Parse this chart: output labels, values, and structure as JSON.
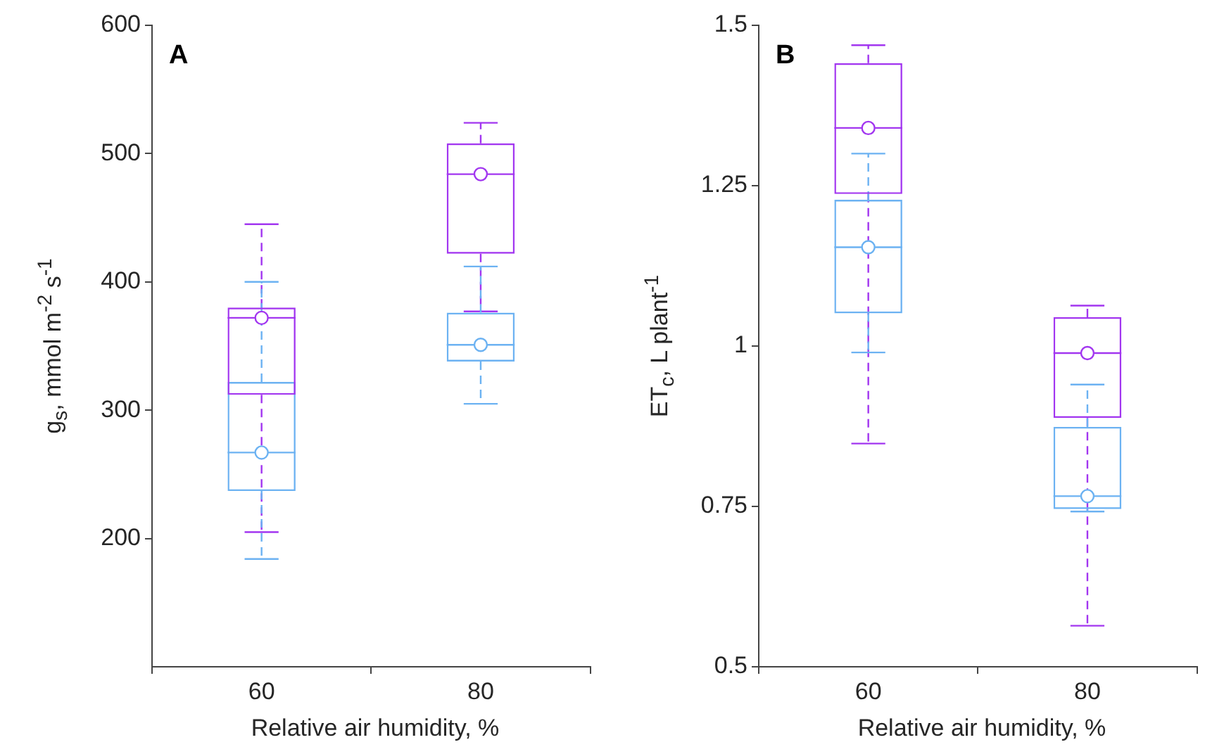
{
  "chart_data": [
    {
      "type": "box",
      "title": "A",
      "xlabel": "Relative air humidity, %",
      "ylabel": "g$_{s}$, mmol m$^{-2}$ s$^{-1}$",
      "categories": [
        "60",
        "80"
      ],
      "ylim": [
        100,
        600
      ],
      "yticks": [
        200,
        300,
        400,
        500,
        600
      ],
      "grid": false,
      "legend": false,
      "marker": "circle",
      "series": [
        {
          "color": "#a236f0",
          "boxes": [
            {
              "low": 205,
              "q1": 312,
              "median": 372,
              "q3": 380,
              "high": 445
            },
            {
              "low": 377,
              "q1": 422,
              "median": 484,
              "q3": 508,
              "high": 524
            }
          ]
        },
        {
          "color": "#6cb2f2",
          "boxes": [
            {
              "low": 184,
              "q1": 237,
              "median": 267,
              "q3": 322,
              "high": 400
            },
            {
              "low": 305,
              "q1": 338,
              "median": 351,
              "q3": 376,
              "high": 412
            }
          ]
        },
        {
          "type": "scatter",
          "color": "#a236f0",
          "x": [
            "60",
            "80"
          ],
          "values": [
            372,
            484
          ]
        },
        {
          "type": "scatter",
          "color": "#6cb2f2",
          "x": [
            "60",
            "80"
          ],
          "values": [
            267,
            351
          ]
        }
      ]
    },
    {
      "type": "box",
      "title": "B",
      "xlabel": "Relative air humidity, %",
      "ylabel": "ET$_{c}$, L plant$^{-1}$",
      "categories": [
        "60",
        "80"
      ],
      "ylim": [
        0.5,
        1.5
      ],
      "yticks": [
        0.5,
        0.75,
        1,
        1.25,
        1.5
      ],
      "grid": false,
      "legend": false,
      "marker": "circle",
      "series": [
        {
          "color": "#a236f0",
          "boxes": [
            {
              "low": 0.848,
              "q1": 1.237,
              "median": 1.34,
              "q3": 1.441,
              "high": 1.469
            },
            {
              "low": 0.564,
              "q1": 0.888,
              "median": 0.989,
              "q3": 1.045,
              "high": 1.063
            }
          ]
        },
        {
          "color": "#6cb2f2",
          "boxes": [
            {
              "low": 0.99,
              "q1": 1.051,
              "median": 1.154,
              "q3": 1.228,
              "high": 1.3
            },
            {
              "low": 0.742,
              "q1": 0.746,
              "median": 0.766,
              "q3": 0.874,
              "high": 0.94
            }
          ]
        },
        {
          "type": "scatter",
          "color": "#a236f0",
          "x": [
            "60",
            "80"
          ],
          "values": [
            1.34,
            0.989
          ]
        },
        {
          "type": "scatter",
          "color": "#6cb2f2",
          "x": [
            "60",
            "80"
          ],
          "values": [
            1.154,
            0.766
          ]
        }
      ]
    }
  ]
}
